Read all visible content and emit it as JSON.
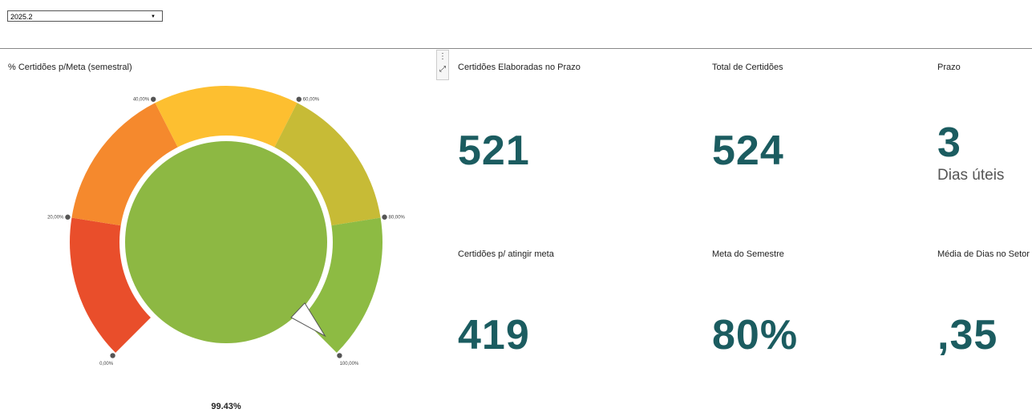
{
  "filter": {
    "selected": "2025.2"
  },
  "gauge": {
    "title": "% Certidões p/Meta (semestral)",
    "value": 99.43,
    "value_label": "99.43%",
    "range": [
      0,
      100
    ],
    "ticks": [
      {
        "value": 0,
        "label": "0,00%"
      },
      {
        "value": 20,
        "label": "20,00%"
      },
      {
        "value": 40,
        "label": "40,00%"
      },
      {
        "value": 60,
        "label": "60,00%"
      },
      {
        "value": 80,
        "label": "80,00%"
      },
      {
        "value": 100,
        "label": "100,00%"
      }
    ],
    "band_colors": [
      "#e94e2b",
      "#f5892d",
      "#fdbf30",
      "#c7bb36",
      "#8dbb43"
    ],
    "center_color": "#8db843"
  },
  "kpis": [
    {
      "title": "Certidões Elaboradas no Prazo",
      "value": "521"
    },
    {
      "title": "Total de Certidões",
      "value": "524"
    },
    {
      "title": "Prazo",
      "value": "3",
      "unit": "Dias úteis"
    },
    {
      "title": "Certidões p/ atingir meta",
      "value": "419"
    },
    {
      "title": "Meta do Semestre",
      "value": "80%"
    },
    {
      "title": "Média de Dias no Setor",
      "value": ",35"
    }
  ]
}
